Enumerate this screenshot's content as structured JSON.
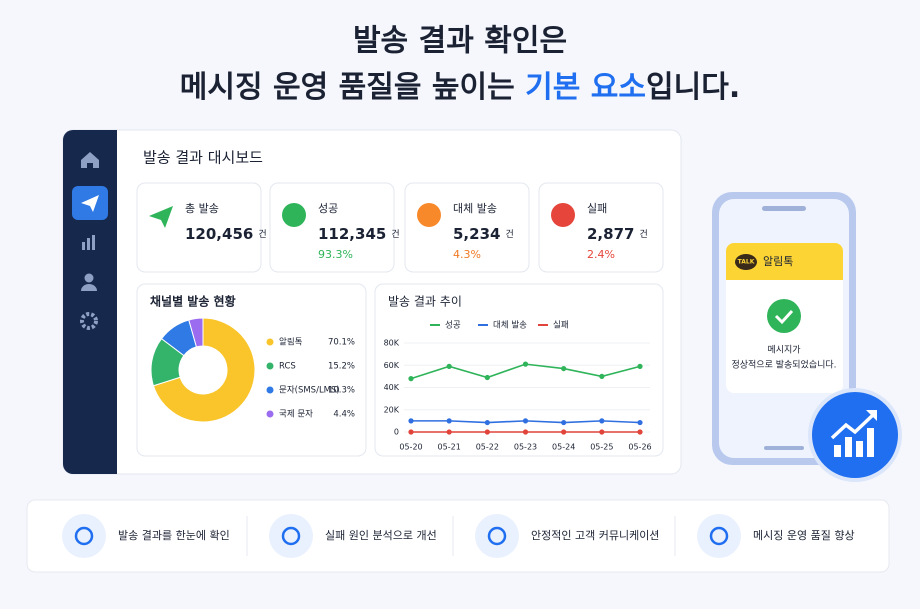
{
  "headline": {
    "line1": "발송 결과 확인은",
    "line2_prefix": "메시징 운영 품질을 높이는",
    "line2_highlight": "기본 요소",
    "line2_suffix": "입니다."
  },
  "dashboard": {
    "title": "발송 결과 대시보드",
    "stats": [
      {
        "label": "총 발송",
        "value": "120,456",
        "unit": "건"
      },
      {
        "label": "성공",
        "value": "112,345",
        "unit": "건",
        "rate": "93.3%"
      },
      {
        "label": "대체 발송",
        "value": "5,234",
        "unit": "건",
        "rate": "4.3%"
      },
      {
        "label": "실패",
        "value": "2,877",
        "unit": "건",
        "rate": "2.4%"
      }
    ],
    "channel_chart": {
      "type": "pie",
      "title": "채널별 발송 현황",
      "categories": [
        "알림톡",
        "RCS",
        "문자(SMS/LMS)",
        "국제 문자"
      ],
      "values": [
        70.1,
        15.2,
        10.3,
        4.4
      ],
      "value_labels": [
        "70.1%",
        "15.2%",
        "10.3%",
        "4.4%"
      ],
      "colors": [
        "#f9c52b",
        "#34b36b",
        "#2f7ae5",
        "#9b6cf0"
      ]
    },
    "trend_chart": {
      "type": "line",
      "title": "발송 결과 추이",
      "categories": [
        "05-20",
        "05-21",
        "05-22",
        "05-23",
        "05-24",
        "05-25",
        "05-26"
      ],
      "series": [
        {
          "name": "성공",
          "color": "#2fb45a",
          "values": [
            48000,
            59000,
            49000,
            61000,
            57000,
            50000,
            59000
          ]
        },
        {
          "name": "대체 발송",
          "color": "#2f6fe0",
          "values": [
            10000,
            10000,
            8500,
            10000,
            8500,
            10000,
            8500
          ]
        },
        {
          "name": "실패",
          "color": "#e0443a",
          "values": [
            0,
            0,
            0,
            0,
            0,
            0,
            0
          ]
        }
      ],
      "ylim": [
        0,
        80000
      ],
      "yticks": [
        0,
        {
          "value": 20000,
          "label": "20K"
        },
        {
          "value": 40000,
          "label": "40K"
        },
        {
          "value": 60000,
          "label": "60K"
        },
        {
          "value": 80000,
          "label": "80K"
        }
      ],
      "grid": true
    }
  },
  "phone": {
    "badge": "TALK",
    "app": "알림톡",
    "message_line1": "메시지가",
    "message_line2": "정상적으로 발송되었습니다."
  },
  "features": [
    "발송 결과를 한눈에 확인",
    "실패 원인 분석으로 개선",
    "안정적인 고객 커뮤니케이션",
    "메시징 운영 품질 향상"
  ]
}
